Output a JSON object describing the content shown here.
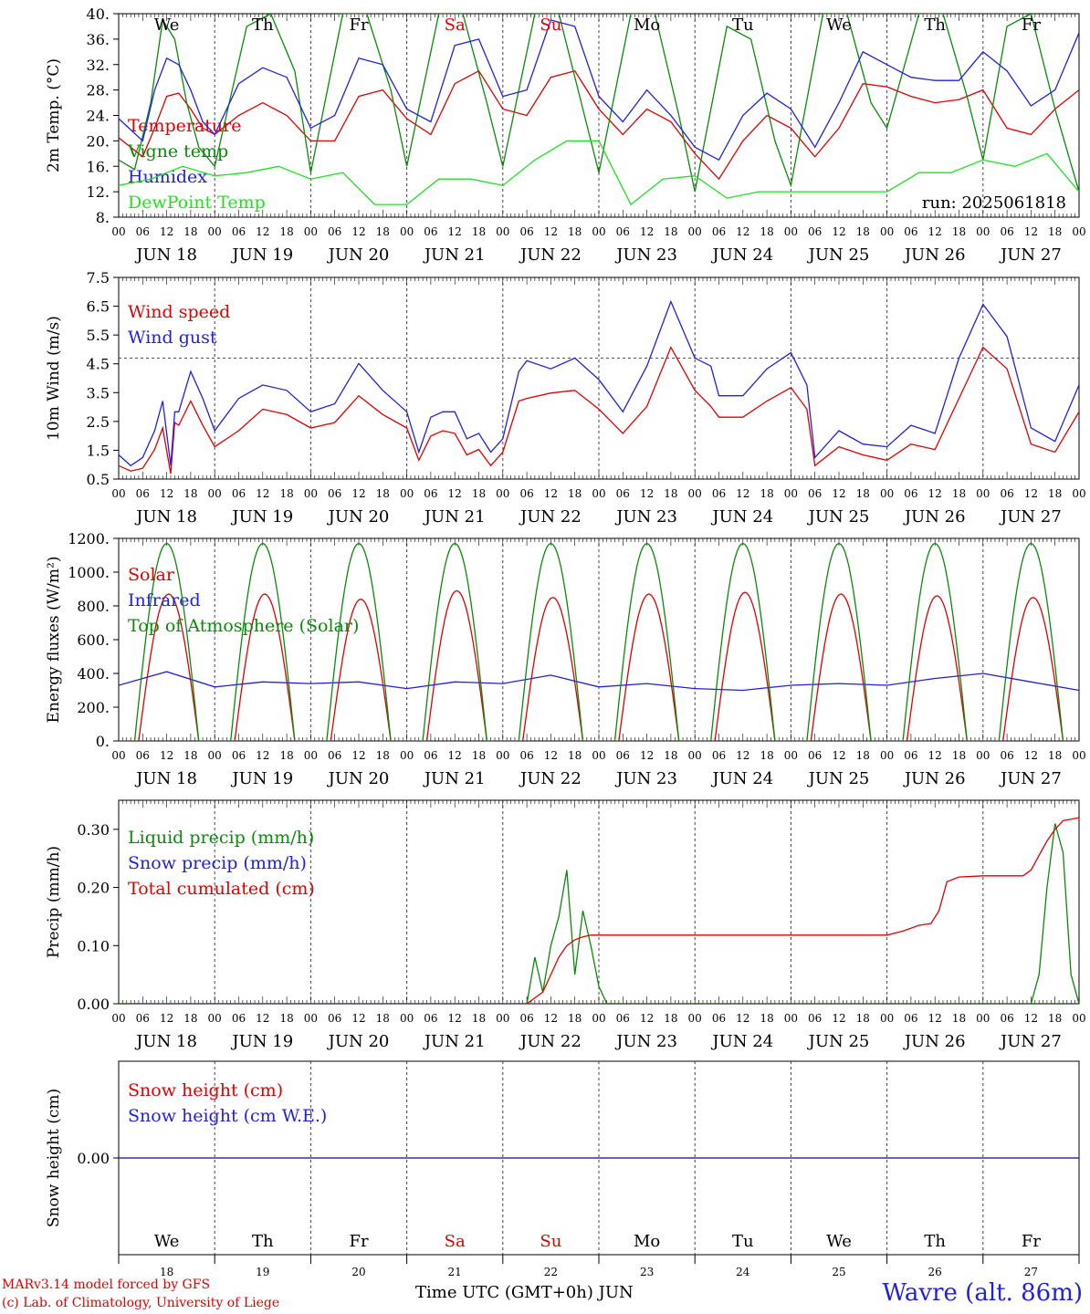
{
  "station_title": "Wavre (alt. 86m)",
  "run_label": "run: 2025061818",
  "credits": [
    "MARv3.14 model forced by GFS",
    "(c) Lab. of Climatology, University of Liege"
  ],
  "x_axis_title": "Time UTC (GMT+0h)",
  "month_label": "JUN",
  "days": [
    "JUN 18",
    "JUN 19",
    "JUN 20",
    "JUN 21",
    "JUN 22",
    "JUN 23",
    "JUN 24",
    "JUN 25",
    "JUN 26",
    "JUN 27"
  ],
  "day_numbers": [
    "18",
    "19",
    "20",
    "21",
    "22",
    "23",
    "24",
    "25",
    "26",
    "27"
  ],
  "weekdays": [
    "We",
    "Th",
    "Fr",
    "Sa",
    "Su",
    "Mo",
    "Tu",
    "We",
    "Th",
    "Fr"
  ],
  "weekday_colors": [
    "#000000",
    "#000000",
    "#000000",
    "#e00000",
    "#e00000",
    "#000000",
    "#000000",
    "#000000",
    "#000000",
    "#000000"
  ],
  "hour_ticks": [
    "00",
    "06",
    "12",
    "18"
  ],
  "last_tick": "00",
  "colors": {
    "red": "#e00000",
    "blue": "#2020e0",
    "green": "#0a8a0a",
    "lightgreen": "#20e020"
  },
  "chart_data": [
    {
      "type": "line",
      "ylabel": "2m Temp. (°C)",
      "yticks": [
        "40.",
        "36.",
        "32.",
        "28.",
        "24.",
        "20.",
        "16.",
        "12.",
        "8."
      ],
      "ylim": [
        8,
        40
      ],
      "x_unit": "hours since JUN 18 00 UTC",
      "series": [
        {
          "name": "Temperature",
          "color": "#e00000",
          "x": [
            0,
            6,
            9,
            12,
            15,
            18,
            21,
            24,
            30,
            36,
            42,
            48,
            54,
            60,
            66,
            72,
            78,
            84,
            90,
            96,
            102,
            108,
            114,
            120,
            126,
            132,
            138,
            144,
            150,
            156,
            162,
            168,
            174,
            180,
            186,
            192,
            198,
            204,
            210,
            216,
            222,
            228,
            234,
            240
          ],
          "y": [
            20.5,
            17.5,
            22,
            27,
            27.5,
            25,
            22,
            21,
            24,
            26,
            24,
            20,
            20,
            27,
            28,
            23.5,
            21,
            29,
            31,
            25,
            24,
            30,
            31,
            25,
            21,
            25,
            23,
            18,
            14,
            20,
            24,
            22,
            17.5,
            22,
            29,
            28.5,
            27,
            26,
            26.5,
            28,
            22,
            21,
            25,
            28
          ]
        },
        {
          "name": "Vigne temp",
          "color": "#0a8a0a",
          "x": [
            0,
            4,
            8,
            11,
            14,
            17,
            20,
            24,
            32,
            38,
            44,
            48,
            56,
            62,
            68,
            72,
            80,
            86,
            92,
            96,
            104,
            110,
            116,
            120,
            128,
            134,
            140,
            144,
            152,
            158,
            164,
            168,
            176,
            182,
            188,
            192,
            200,
            206,
            212,
            216,
            222,
            228,
            234,
            240
          ],
          "y": [
            17,
            15.5,
            26,
            39,
            36,
            26,
            19,
            16,
            38,
            40,
            31,
            15,
            40,
            40,
            28,
            16,
            40,
            40,
            26,
            16,
            40,
            40,
            25,
            15,
            40,
            40,
            24,
            12,
            38,
            36,
            20,
            13,
            40,
            40,
            26,
            22,
            40,
            40,
            27,
            17,
            38,
            40,
            25,
            12
          ]
        },
        {
          "name": "Humidex",
          "color": "#2020e0",
          "x": [
            0,
            6,
            9,
            12,
            15,
            18,
            21,
            24,
            30,
            36,
            42,
            48,
            54,
            60,
            66,
            72,
            78,
            84,
            90,
            96,
            102,
            108,
            114,
            120,
            126,
            132,
            138,
            144,
            150,
            156,
            162,
            168,
            174,
            180,
            186,
            192,
            198,
            204,
            210,
            216,
            222,
            228,
            234,
            240
          ],
          "y": [
            23.5,
            20,
            28,
            33,
            32,
            28,
            23,
            21,
            29,
            31.5,
            30,
            22,
            24,
            33,
            32,
            25,
            23,
            35,
            36,
            27,
            28,
            39,
            38,
            27,
            23,
            28,
            24,
            19,
            17,
            24,
            27.5,
            25,
            19,
            26,
            34,
            32,
            30,
            29.5,
            29.5,
            34,
            31,
            25.5,
            28,
            37
          ]
        },
        {
          "name": "DewPoint Temp",
          "color": "#20e020",
          "x": [
            0,
            8,
            16,
            24,
            32,
            40,
            48,
            56,
            64,
            72,
            80,
            88,
            96,
            104,
            112,
            120,
            128,
            136,
            144,
            152,
            160,
            168,
            176,
            184,
            192,
            200,
            208,
            216,
            224,
            232,
            240
          ],
          "y": [
            13,
            14,
            16,
            14.5,
            15,
            16,
            14,
            15,
            10,
            10,
            14,
            14,
            13,
            17,
            20,
            20,
            10,
            14,
            14.5,
            11,
            12,
            12,
            12,
            12,
            12,
            15,
            15,
            17,
            16,
            18,
            12
          ]
        }
      ]
    },
    {
      "type": "line",
      "ylabel": "10m Wind (m/s)",
      "yticks": [
        "7.5",
        "6.5",
        "5.5",
        "4.5",
        "3.5",
        "2.5",
        "1.5",
        "0.5"
      ],
      "ylim": [
        0.5,
        8
      ],
      "reference_line": 5,
      "x_unit": "hours since JUN 18 00 UTC",
      "series": [
        {
          "name": "Wind speed",
          "color": "#e00000",
          "x": [
            0,
            3,
            6,
            9,
            11,
            13,
            14,
            15,
            18,
            21,
            24,
            30,
            36,
            42,
            48,
            54,
            60,
            66,
            72,
            75,
            78,
            81,
            84,
            87,
            90,
            93,
            96,
            100,
            102,
            108,
            114,
            120,
            126,
            132,
            138,
            144,
            148,
            150,
            156,
            162,
            168,
            172,
            174,
            180,
            186,
            192,
            198,
            204,
            210,
            216,
            222,
            228,
            234,
            240
          ],
          "y": [
            1.0,
            0.8,
            0.9,
            1.6,
            2.4,
            0.7,
            2.6,
            2.5,
            3.4,
            2.5,
            1.7,
            2.3,
            3.1,
            2.9,
            2.4,
            2.6,
            3.6,
            2.9,
            2.4,
            1.2,
            2.1,
            2.3,
            2.2,
            1.4,
            1.6,
            1.0,
            1.5,
            3.4,
            3.5,
            3.7,
            3.8,
            3.1,
            2.2,
            3.2,
            5.4,
            3.8,
            3.2,
            2.8,
            2.8,
            3.4,
            3.9,
            3.1,
            1.0,
            1.7,
            1.4,
            1.2,
            1.8,
            1.6,
            3.5,
            5.4,
            4.6,
            1.8,
            1.5,
            3.0
          ]
        },
        {
          "name": "Wind gust",
          "color": "#2020e0",
          "x": [
            0,
            3,
            6,
            9,
            11,
            13,
            14,
            15,
            18,
            21,
            24,
            30,
            36,
            42,
            48,
            54,
            60,
            66,
            72,
            75,
            78,
            81,
            84,
            87,
            90,
            93,
            96,
            100,
            102,
            108,
            114,
            120,
            126,
            132,
            138,
            144,
            148,
            150,
            156,
            162,
            168,
            172,
            174,
            180,
            186,
            192,
            198,
            204,
            210,
            216,
            222,
            228,
            234,
            240
          ],
          "y": [
            1.4,
            1.0,
            1.3,
            2.3,
            3.4,
            1.0,
            3.0,
            3.0,
            4.5,
            3.5,
            2.3,
            3.5,
            4.0,
            3.8,
            3.0,
            3.3,
            4.8,
            3.8,
            3.0,
            1.5,
            2.8,
            3.0,
            3.0,
            2.0,
            2.2,
            1.5,
            2.0,
            4.5,
            4.9,
            4.6,
            5.0,
            4.2,
            3.0,
            4.7,
            7.1,
            5.0,
            4.7,
            3.6,
            3.6,
            4.6,
            5.2,
            4.0,
            1.3,
            2.3,
            1.8,
            1.7,
            2.5,
            2.2,
            5.0,
            7.0,
            5.8,
            2.4,
            1.9,
            4.0
          ]
        }
      ]
    },
    {
      "type": "line",
      "ylabel": "Energy fluxes (W/m²)",
      "yticks": [
        "1200.",
        "1000.",
        "800.",
        "600.",
        "400.",
        "200.",
        "0."
      ],
      "ylim": [
        0,
        1200
      ],
      "x_unit": "hours since JUN 18 00 UTC",
      "series": [
        {
          "name": "Solar",
          "color": "#e00000",
          "daily_peak_w_m2": [
            870,
            870,
            840,
            890,
            850,
            870,
            880,
            870,
            860,
            850
          ],
          "day_start_hour": 5,
          "day_end_hour": 20
        },
        {
          "name": "Infrared",
          "color": "#2020e0",
          "x": [
            0,
            12,
            24,
            36,
            48,
            60,
            72,
            84,
            96,
            108,
            120,
            132,
            144,
            156,
            168,
            180,
            192,
            204,
            216,
            228,
            240
          ],
          "y": [
            330,
            410,
            320,
            350,
            340,
            350,
            310,
            350,
            340,
            390,
            320,
            340,
            310,
            300,
            330,
            340,
            330,
            370,
            400,
            350,
            300
          ]
        },
        {
          "name": "Top of Atmosphere (Solar)",
          "color": "#0a8a0a",
          "daily_peak_w_m2": [
            1170,
            1170,
            1170,
            1170,
            1170,
            1170,
            1170,
            1170,
            1170,
            1170
          ],
          "day_start_hour": 4,
          "day_end_hour": 20
        }
      ]
    },
    {
      "type": "line",
      "ylabel": "Precip (mm/h)",
      "yticks": [
        "0.30",
        "0.20",
        "0.10",
        "0.00"
      ],
      "ylim": [
        0,
        0.35
      ],
      "x_unit": "hours since JUN 18 00 UTC",
      "series": [
        {
          "name": "Liquid precip (mm/h)",
          "color": "#0a8a0a",
          "x": [
            0,
            100,
            102,
            104,
            106,
            108,
            110,
            112,
            114,
            116,
            118,
            120,
            122,
            240
          ],
          "y": [
            0,
            0,
            0,
            0.08,
            0.02,
            0.1,
            0.15,
            0.23,
            0.05,
            0.16,
            0.1,
            0.03,
            0,
            0
          ],
          "x2": [
            228,
            230,
            232,
            234,
            236,
            238,
            240
          ],
          "y2": [
            0,
            0.05,
            0.2,
            0.31,
            0.26,
            0.05,
            0
          ]
        },
        {
          "name": "Snow precip (mm/h)",
          "color": "#2020e0",
          "x": [
            0,
            240
          ],
          "y": [
            0,
            0
          ]
        },
        {
          "name": "Total cumulated (cm)",
          "color": "#e00000",
          "x": [
            0,
            102,
            104,
            106,
            108,
            110,
            112,
            114,
            116,
            118,
            120,
            122,
            192,
            196,
            200,
            203,
            205,
            207,
            210,
            216,
            222,
            226,
            228,
            232,
            234,
            236,
            240
          ],
          "y": [
            0,
            0,
            0.01,
            0.02,
            0.05,
            0.08,
            0.1,
            0.11,
            0.115,
            0.118,
            0.118,
            0.118,
            0.118,
            0.125,
            0.135,
            0.138,
            0.16,
            0.21,
            0.218,
            0.22,
            0.22,
            0.22,
            0.23,
            0.28,
            0.3,
            0.315,
            0.32
          ]
        }
      ]
    },
    {
      "type": "line",
      "ylabel": "Snow height (cm)",
      "yticks": [
        "0.00"
      ],
      "ylim": [
        -1,
        1
      ],
      "x_unit": "hours since JUN 18 00 UTC",
      "series": [
        {
          "name": "Snow height (cm)",
          "color": "#e00000",
          "x": [
            0,
            240
          ],
          "y": [
            0,
            0
          ]
        },
        {
          "name": "Snow height (cm W.E.)",
          "color": "#2020e0",
          "x": [
            0,
            240
          ],
          "y": [
            0,
            0
          ]
        }
      ]
    }
  ]
}
